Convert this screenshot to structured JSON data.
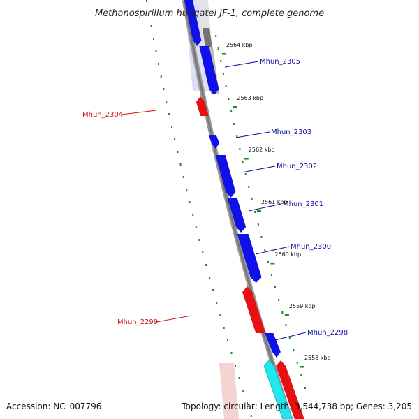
{
  "title": "Methanospirillum hungatei JF-1, complete genome",
  "footer": {
    "accession": "Accession: NC_007796",
    "summary": "Topology: circular; Length: 3,544,738 bp; Genes: 3,205"
  },
  "colors": {
    "forward_gene": "#1010e8",
    "reverse_gene": "#e81010",
    "forward_label": "#0a0aa8",
    "reverse_label": "#d01010",
    "tick": "#1a8a1a",
    "backbone": "#7a7a7a",
    "cyan_gene": "#20e8ee"
  },
  "scale_ticks": [
    {
      "label": "2564 kbp"
    },
    {
      "label": "2563 kbp"
    },
    {
      "label": "2562 kbp"
    },
    {
      "label": "2561 kbp"
    },
    {
      "label": "2560 kbp"
    },
    {
      "label": "2559 kbp"
    },
    {
      "label": "2558 kbp"
    }
  ],
  "genes": [
    {
      "name": "Mhun_2305",
      "strand": "forward"
    },
    {
      "name": "Mhun_2304",
      "strand": "reverse"
    },
    {
      "name": "Mhun_2303",
      "strand": "forward"
    },
    {
      "name": "Mhun_2302",
      "strand": "forward"
    },
    {
      "name": "Mhun_2301",
      "strand": "forward"
    },
    {
      "name": "Mhun_2300",
      "strand": "forward"
    },
    {
      "name": "Mhun_2299",
      "strand": "reverse"
    },
    {
      "name": "Mhun_2298",
      "strand": "forward"
    }
  ]
}
